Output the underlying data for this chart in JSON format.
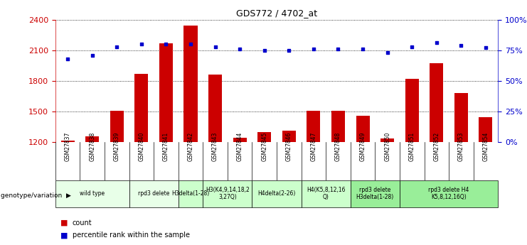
{
  "title": "GDS772 / 4702_at",
  "samples": [
    "GSM27837",
    "GSM27838",
    "GSM27839",
    "GSM27840",
    "GSM27841",
    "GSM27842",
    "GSM27843",
    "GSM27844",
    "GSM27845",
    "GSM27846",
    "GSM27847",
    "GSM27848",
    "GSM27849",
    "GSM27850",
    "GSM27851",
    "GSM27852",
    "GSM27853",
    "GSM27854"
  ],
  "counts": [
    1215,
    1255,
    1510,
    1870,
    2170,
    2340,
    1860,
    1240,
    1300,
    1310,
    1510,
    1510,
    1455,
    1235,
    1820,
    1970,
    1680,
    1445
  ],
  "percentiles": [
    68,
    71,
    78,
    80,
    80,
    80,
    78,
    76,
    75,
    75,
    76,
    76,
    76,
    73,
    78,
    81,
    79,
    77
  ],
  "ylim_left": [
    1200,
    2400
  ],
  "ylim_right": [
    0,
    100
  ],
  "yticks_left": [
    1200,
    1500,
    1800,
    2100,
    2400
  ],
  "yticks_right": [
    0,
    25,
    50,
    75,
    100
  ],
  "groups": [
    {
      "label": "wild type",
      "start": 0,
      "end": 3,
      "color": "#e8ffe8"
    },
    {
      "label": "rpd3 delete",
      "start": 3,
      "end": 5,
      "color": "#e8ffe8"
    },
    {
      "label": "H3delta(1-28)",
      "start": 5,
      "end": 6,
      "color": "#ccffcc"
    },
    {
      "label": "H3(K4,9,14,18,2\n3,27Q)",
      "start": 6,
      "end": 8,
      "color": "#ccffcc"
    },
    {
      "label": "H4delta(2-26)",
      "start": 8,
      "end": 10,
      "color": "#ccffcc"
    },
    {
      "label": "H4(K5,8,12,16\nQ)",
      "start": 10,
      "end": 12,
      "color": "#ccffcc"
    },
    {
      "label": "rpd3 delete\nH3delta(1-28)",
      "start": 12,
      "end": 14,
      "color": "#99ee99"
    },
    {
      "label": "rpd3 delete H4\nK5,8,12,16Q)",
      "start": 14,
      "end": 18,
      "color": "#99ee99"
    }
  ],
  "bar_color": "#cc0000",
  "dot_color": "#0000cc",
  "tick_color_left": "#cc0000",
  "tick_color_right": "#0000cc",
  "bg_color": "#ffffff",
  "grid_color": "#000000",
  "bar_bottom": 1200,
  "sample_bg": "#cccccc"
}
